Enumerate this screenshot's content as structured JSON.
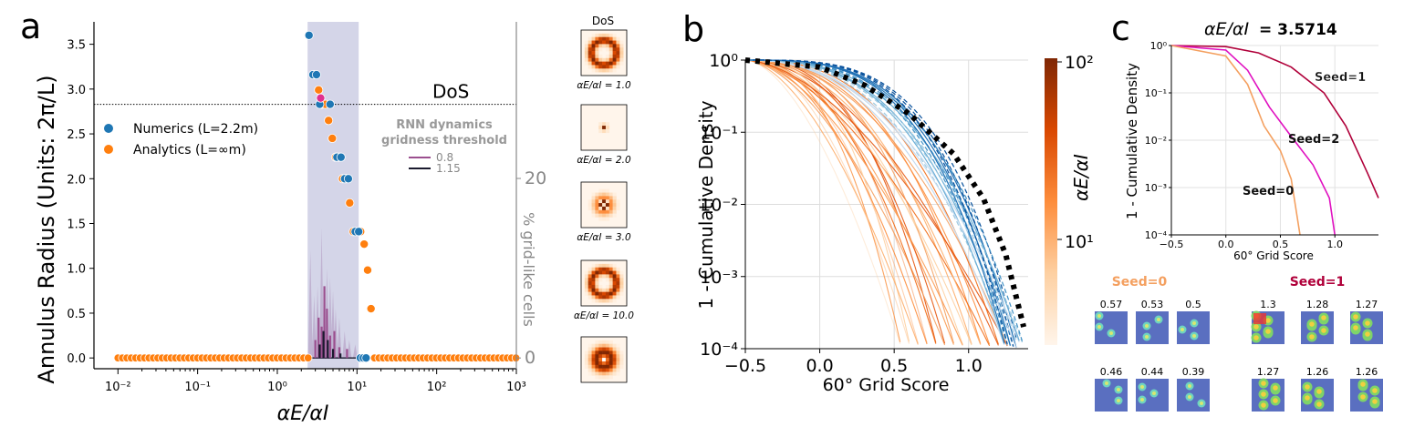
{
  "panels": {
    "a_letter": "a",
    "b_letter": "b",
    "c_letter": "c"
  },
  "colors": {
    "numerics": "#1f77b4",
    "analytics": "#ff7f0e",
    "band": "#c5c7e0",
    "rnn_0_8": "#9b4f8f",
    "rnn_1_15": "#1a1a2e",
    "seed0": "#f4a060",
    "seed1": "#b0003a",
    "seed2": "#e010c0",
    "dos_dotted": "#000000"
  },
  "chart_data": [
    {
      "id": "panel-a",
      "type": "scatter",
      "xscale": "log",
      "xlim": [
        0.005,
        1000
      ],
      "ylim": [
        -0.12,
        3.75
      ],
      "xlabel": "αE/αI",
      "ylabel": "Annulus Radius (Units: 2π/L)",
      "y2label": "% grid-like cells",
      "x_ticks": [
        "10⁻²",
        "10⁻¹",
        "10⁰",
        "10¹",
        "10²",
        "10³"
      ],
      "y_ticks": [
        "0.0",
        "0.5",
        "1.0",
        "1.5",
        "2.0",
        "2.5",
        "3.0",
        "3.5"
      ],
      "y2_ticks": [
        "0",
        "20"
      ],
      "dos_line": {
        "y": 2.83,
        "label": "DoS"
      },
      "shaded_band": [
        2.4,
        10.5
      ],
      "legend": {
        "numerics": "Numerics (L=2.2m)",
        "analytics": "Analytics (L=∞m)",
        "rnn_title_1": "RNN dynamics",
        "rnn_title_2": "gridness threshold",
        "rnn_08": "0.8",
        "rnn_115": "1.15"
      },
      "analytics_points": [
        [
          2.9,
          3.16
        ],
        [
          3.3,
          2.99
        ],
        [
          3.6,
          2.83
        ],
        [
          4.0,
          2.83
        ],
        [
          4.4,
          2.65
        ],
        [
          4.9,
          2.45
        ],
        [
          5.4,
          2.24
        ],
        [
          6.0,
          2.24
        ],
        [
          6.6,
          2.0
        ],
        [
          7.3,
          2.0
        ],
        [
          8.1,
          1.73
        ],
        [
          9.0,
          1.41
        ],
        [
          10.0,
          1.41
        ],
        [
          11.1,
          1.41
        ],
        [
          12.3,
          1.27
        ],
        [
          13.6,
          0.98
        ],
        [
          15.0,
          0.55
        ]
      ],
      "numerics_points": [
        [
          2.5,
          3.6
        ],
        [
          2.8,
          3.16
        ],
        [
          3.1,
          3.16
        ],
        [
          3.4,
          2.83
        ],
        [
          4.6,
          2.83
        ],
        [
          5.6,
          2.24
        ],
        [
          6.3,
          2.24
        ],
        [
          7.0,
          2.0
        ],
        [
          7.8,
          2.0
        ],
        [
          9.5,
          1.41
        ],
        [
          10.5,
          1.41
        ],
        [
          11.0,
          0.0
        ],
        [
          12.0,
          0.0
        ],
        [
          13.0,
          0.0
        ]
      ],
      "rnn_peaks_0_8": [
        [
          3.0,
          0.2
        ],
        [
          3.3,
          0.45
        ],
        [
          3.6,
          0.35
        ],
        [
          3.9,
          0.8
        ],
        [
          4.2,
          0.55
        ],
        [
          4.6,
          0.25
        ],
        [
          5.2,
          0.3
        ],
        [
          6.0,
          0.12
        ],
        [
          7.5,
          0.1
        ]
      ],
      "rnn_peaks_1_15": [
        [
          3.4,
          0.15
        ],
        [
          3.8,
          0.3
        ],
        [
          4.3,
          0.2
        ],
        [
          5.0,
          0.1
        ],
        [
          6.2,
          0.05
        ]
      ],
      "shaded_peaks": [
        [
          2.6,
          1.2
        ],
        [
          2.9,
          0.7
        ],
        [
          3.2,
          0.8
        ],
        [
          3.6,
          1.45
        ],
        [
          3.9,
          0.6
        ],
        [
          4.2,
          1.0
        ],
        [
          4.6,
          0.9
        ],
        [
          5.0,
          0.75
        ],
        [
          5.4,
          0.55
        ],
        [
          6.0,
          0.45
        ],
        [
          7.0,
          0.3
        ],
        [
          8.0,
          0.2
        ],
        [
          9.5,
          0.15
        ]
      ]
    },
    {
      "id": "panel-a-heatmaps",
      "type": "heatmap",
      "title": "DoS",
      "labels": [
        "αE/αI = 1.0",
        "αE/αI = 2.0",
        "αE/αI = 3.0",
        "αE/αI = 10.0"
      ],
      "kinds": [
        "ring",
        "point",
        "checker",
        "ring2",
        "blob"
      ]
    },
    {
      "id": "panel-b",
      "type": "line",
      "yscale": "log",
      "xlim": [
        -0.5,
        1.4
      ],
      "ylim": [
        0.0001,
        1
      ],
      "xlabel": "60° Grid Score",
      "ylabel": "1 - Cumulative Density",
      "x_ticks": [
        "−0.5",
        "0.0",
        "0.5",
        "1.0"
      ],
      "y_ticks": [
        "10⁰",
        "10⁻¹",
        "10⁻²",
        "10⁻³",
        "10⁻⁴"
      ],
      "colorbar": {
        "label": "αE/αI",
        "ticks": [
          "10²",
          "10¹"
        ]
      },
      "dos_curve": [
        [
          -0.5,
          1.0
        ],
        [
          0.0,
          0.8
        ],
        [
          0.3,
          0.45
        ],
        [
          0.6,
          0.18
        ],
        [
          0.9,
          0.05
        ],
        [
          1.1,
          0.012
        ],
        [
          1.25,
          0.002
        ],
        [
          1.37,
          0.0002
        ]
      ]
    },
    {
      "id": "panel-c",
      "type": "line",
      "yscale": "log",
      "title": "αE/αI",
      "title_value": " = 3.5714",
      "xlim": [
        -0.5,
        1.4
      ],
      "ylim": [
        0.0001,
        1
      ],
      "xlabel": "60° Grid Score",
      "ylabel": "1 - Cumulative Density",
      "x_ticks": [
        "−0.5",
        "0.0",
        "0.5",
        "1.0"
      ],
      "y_ticks": [
        "10⁰",
        "10⁻¹",
        "10⁻²",
        "10⁻³",
        "10⁻⁴"
      ],
      "series": [
        {
          "name": "Seed=1",
          "values": [
            [
              -0.5,
              1.0
            ],
            [
              0.0,
              0.95
            ],
            [
              0.3,
              0.7
            ],
            [
              0.6,
              0.35
            ],
            [
              0.9,
              0.1
            ],
            [
              1.1,
              0.02
            ],
            [
              1.3,
              0.002
            ],
            [
              1.4,
              0.0006
            ]
          ]
        },
        {
          "name": "Seed=2",
          "values": [
            [
              -0.5,
              1.0
            ],
            [
              0.0,
              0.8
            ],
            [
              0.2,
              0.3
            ],
            [
              0.4,
              0.05
            ],
            [
              0.6,
              0.012
            ],
            [
              0.8,
              0.003
            ],
            [
              0.95,
              0.0006
            ],
            [
              1.0,
              0.0001
            ]
          ]
        },
        {
          "name": "Seed=0",
          "values": [
            [
              -0.5,
              1.0
            ],
            [
              0.0,
              0.6
            ],
            [
              0.2,
              0.15
            ],
            [
              0.35,
              0.02
            ],
            [
              0.5,
              0.006
            ],
            [
              0.6,
              0.0015
            ],
            [
              0.68,
              0.0001
            ]
          ]
        }
      ],
      "seed_labels": {
        "s1": "Seed=1",
        "s2": "Seed=2",
        "s0": "Seed=0"
      },
      "thumb_titles": {
        "left": "Seed=0",
        "right": "Seed=1"
      },
      "seed0_scores": [
        "0.57",
        "0.53",
        "0.5",
        "0.46",
        "0.44",
        "0.39"
      ],
      "seed1_scores": [
        "1.3",
        "1.28",
        "1.27",
        "1.27",
        "1.26",
        "1.26"
      ]
    }
  ]
}
